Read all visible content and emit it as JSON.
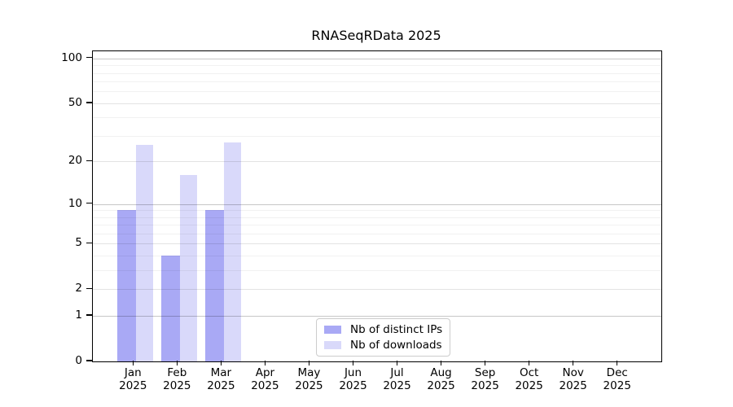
{
  "chart_data": {
    "type": "bar",
    "title": "RNASeqRData 2025",
    "yscale": "log1p",
    "ylim": [
      0,
      112
    ],
    "grid": "horizontal",
    "legend_position": "bottom-center",
    "categories": [
      "Jan",
      "Feb",
      "Mar",
      "Apr",
      "May",
      "Jun",
      "Jul",
      "Aug",
      "Sep",
      "Oct",
      "Nov",
      "Dec"
    ],
    "x_year_line": "2025",
    "yticks": [
      0,
      1,
      2,
      5,
      10,
      20,
      50,
      100
    ],
    "grid_major": [
      1,
      10,
      100
    ],
    "grid_mid": [
      2,
      5,
      20,
      50
    ],
    "grid_minor": [
      3,
      4,
      6,
      7,
      8,
      9,
      30,
      40,
      60,
      70,
      80,
      90
    ],
    "series": [
      {
        "name": "Nb of distinct IPs",
        "color": "#a9a9f5",
        "values": [
          9,
          4,
          9,
          null,
          null,
          null,
          null,
          null,
          null,
          null,
          null,
          null
        ]
      },
      {
        "name": "Nb of downloads",
        "color": "#d9d9fa",
        "values": [
          26,
          16,
          27,
          null,
          null,
          null,
          null,
          null,
          null,
          null,
          null,
          null
        ]
      }
    ]
  }
}
